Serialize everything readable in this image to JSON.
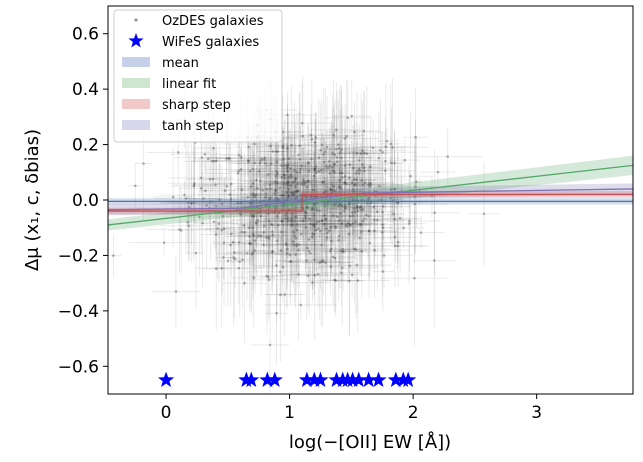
{
  "chart_data": {
    "type": "scatter",
    "xlabel": "log(−[OII] EW [Å])",
    "ylabel": "Δμ (x₁, c, δbias)",
    "xlim": [
      -0.47,
      3.78
    ],
    "ylim": [
      -0.7,
      0.7
    ],
    "x_ticks": [
      0,
      1,
      2,
      3
    ],
    "x_tick_labels": [
      "0",
      "1",
      "2",
      "3"
    ],
    "y_ticks": [
      -0.6,
      -0.4,
      -0.2,
      0.0,
      0.2,
      0.4,
      0.6
    ],
    "y_tick_labels": [
      "−0.6",
      "−0.4",
      "−0.2",
      "0.0",
      "0.2",
      "0.4",
      "0.6"
    ],
    "grid": false,
    "legend": {
      "placement": "top-left",
      "entries": [
        {
          "label": "OzDES galaxies",
          "marker": "dot",
          "color": "#888888"
        },
        {
          "label": "WiFeS galaxies",
          "marker": "star",
          "color": "#0000ff"
        },
        {
          "label": "mean",
          "marker": "band",
          "color": "#c6d0ea"
        },
        {
          "label": "linear fit",
          "marker": "band",
          "color": "#cfe6cf"
        },
        {
          "label": "sharp step",
          "marker": "band",
          "color": "#f2c9c9"
        },
        {
          "label": "tanh step",
          "marker": "band",
          "color": "#d8d6ea"
        }
      ]
    },
    "series": [
      {
        "name": "WiFeS galaxies",
        "type": "scatter",
        "marker": "star",
        "color": "#0000ff",
        "x": [
          0.0,
          0.65,
          0.69,
          0.82,
          0.88,
          1.14,
          1.2,
          1.25,
          1.38,
          1.43,
          1.47,
          1.51,
          1.56,
          1.64,
          1.72,
          1.86,
          1.92,
          1.96
        ],
        "y": [
          -0.65,
          -0.65,
          -0.65,
          -0.65,
          -0.65,
          -0.65,
          -0.65,
          -0.65,
          -0.65,
          -0.65,
          -0.65,
          -0.65,
          -0.65,
          -0.65,
          -0.65,
          -0.65,
          -0.65,
          -0.65
        ]
      },
      {
        "name": "mean",
        "type": "line",
        "color": "#4c72b0",
        "x": [
          -0.47,
          3.78
        ],
        "y": [
          -0.005,
          -0.005
        ],
        "band": [
          -0.016,
          0.006
        ]
      },
      {
        "name": "linear fit",
        "type": "line",
        "color": "#55a868",
        "x": [
          -0.47,
          3.78
        ],
        "y": [
          -0.09,
          0.125
        ],
        "band_low": [
          -0.11,
          0.09
        ],
        "band_high": [
          -0.07,
          0.16
        ]
      },
      {
        "name": "sharp step",
        "type": "step",
        "color": "#c44e52",
        "step_x": 1.1,
        "y_low": -0.04,
        "y_high": 0.02,
        "band_halfwidth": 0.012
      },
      {
        "name": "tanh step",
        "type": "line",
        "color": "#8172b2",
        "x": [
          -0.47,
          0.6,
          1.1,
          1.6,
          3.78
        ],
        "y": [
          -0.035,
          -0.03,
          0.0,
          0.025,
          0.04
        ],
        "band_halfwidth": 0.02
      }
    ],
    "ozdes_cloud": {
      "count": 700,
      "x_center": 1.1,
      "x_spread": 0.45,
      "y_center": 0.0,
      "y_spread": 0.13,
      "color": "#555555"
    }
  }
}
